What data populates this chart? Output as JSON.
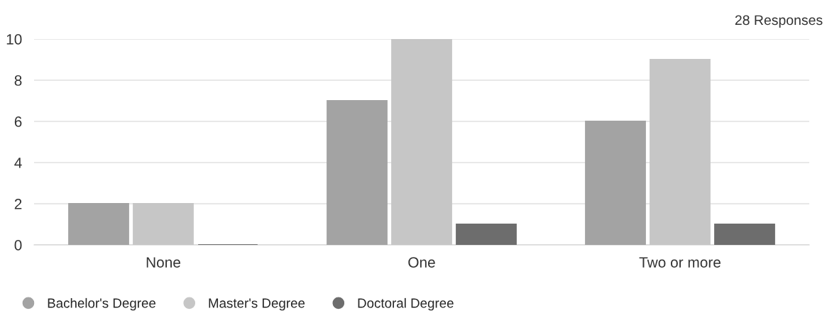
{
  "chart_data": {
    "type": "bar",
    "annotations": [
      "28 Responses"
    ],
    "categories": [
      "None",
      "One",
      "Two or more"
    ],
    "series": [
      {
        "name": "Bachelor's Degree",
        "color": "#a3a3a3",
        "values": [
          2,
          7,
          6
        ]
      },
      {
        "name": "Master's Degree",
        "color": "#c6c6c6",
        "values": [
          2,
          10,
          9
        ]
      },
      {
        "name": "Doctoral Degree",
        "color": "#6d6d6d",
        "values": [
          0,
          1,
          1
        ]
      }
    ],
    "ylim": [
      0,
      10
    ],
    "yticks": [
      0,
      2,
      4,
      6,
      8,
      10
    ],
    "grid": "y",
    "legend": "bottom left"
  }
}
